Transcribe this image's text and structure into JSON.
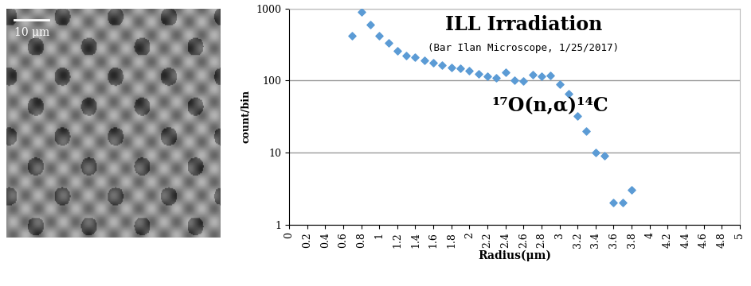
{
  "chart_data": {
    "type": "scatter",
    "title": "ILL Irradiation",
    "subtitle": "(Bar Ilan Microscope, 1/25/2017)",
    "annotation": "¹⁷O(n,α)¹⁴C",
    "x_label": "Radius(μm)",
    "y_label": "count/bin",
    "x": [
      0.7,
      0.8,
      0.9,
      1.0,
      1.1,
      1.2,
      1.3,
      1.4,
      1.5,
      1.6,
      1.7,
      1.8,
      1.9,
      2.0,
      2.1,
      2.2,
      2.3,
      2.4,
      2.5,
      2.6,
      2.7,
      2.8,
      2.9,
      3.0,
      3.1,
      3.2,
      3.3,
      3.4,
      3.5,
      3.6,
      3.7,
      3.8
    ],
    "values": [
      420,
      900,
      600,
      420,
      330,
      260,
      220,
      210,
      190,
      175,
      165,
      150,
      148,
      138,
      125,
      115,
      110,
      130,
      100,
      98,
      120,
      115,
      118,
      88,
      65,
      32,
      20,
      10,
      9,
      2,
      2,
      3
    ],
    "color": "#5b9bd5",
    "marker": "diamond",
    "log": "y",
    "grid": true,
    "xlim": [
      0,
      5
    ],
    "xticks": [
      0,
      0.2,
      0.4,
      0.6,
      0.8,
      1,
      1.2,
      1.4,
      1.6,
      1.8,
      2,
      2.2,
      2.4,
      2.6,
      2.8,
      3,
      3.2,
      3.4,
      3.6,
      3.8,
      4,
      4.2,
      4.4,
      4.6,
      4.8,
      5
    ],
    "ylim": [
      1,
      1000
    ],
    "yticks": [
      1,
      10,
      100,
      1000
    ]
  },
  "micrograph": {
    "scale_label": "10 μm"
  }
}
